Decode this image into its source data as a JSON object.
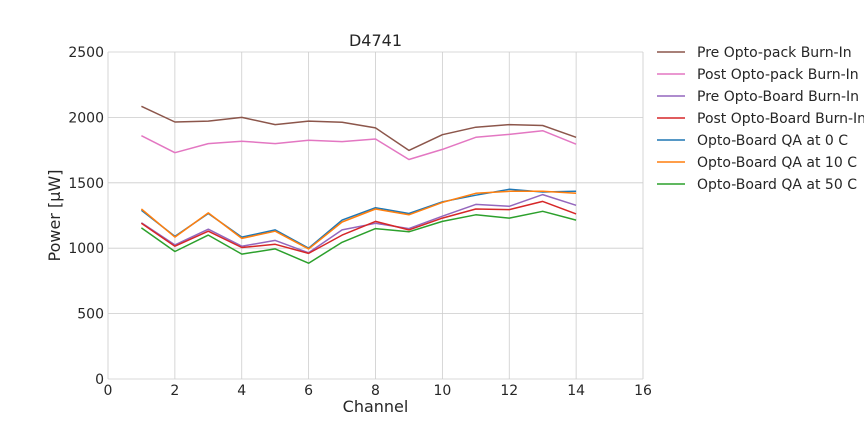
{
  "chart_data": {
    "type": "line",
    "title": "D4741",
    "xlabel": "Channel",
    "ylabel": "Power [μW]",
    "xlim": [
      0,
      16
    ],
    "ylim": [
      0,
      2500
    ],
    "xticks": [
      0,
      2,
      4,
      6,
      8,
      10,
      12,
      14,
      16
    ],
    "yticks": [
      0,
      500,
      1000,
      1500,
      2000,
      2500
    ],
    "grid": true,
    "legend_position": "outside-right-top",
    "x": [
      1,
      2,
      3,
      4,
      5,
      6,
      7,
      8,
      9,
      10,
      11,
      12,
      13,
      14
    ],
    "series": [
      {
        "name": "Pre Opto-pack Burn-In",
        "color": "#8c564b",
        "values": [
          2085,
          1965,
          1972,
          2000,
          1945,
          1972,
          1963,
          1920,
          1748,
          1868,
          1925,
          1945,
          1938,
          1848
        ]
      },
      {
        "name": "Post Opto-pack Burn-In",
        "color": "#e377c2",
        "values": [
          1860,
          1730,
          1800,
          1818,
          1800,
          1825,
          1815,
          1835,
          1678,
          1755,
          1848,
          1870,
          1898,
          1795
        ]
      },
      {
        "name": "Pre Opto-Board Burn-In",
        "color": "#9467bd",
        "values": [
          1195,
          1025,
          1145,
          1015,
          1060,
          965,
          1140,
          1190,
          1150,
          1245,
          1335,
          1320,
          1410,
          1328
        ]
      },
      {
        "name": "Post Opto-Board Burn-In",
        "color": "#d62728",
        "values": [
          1190,
          1015,
          1130,
          1005,
          1030,
          960,
          1100,
          1205,
          1140,
          1230,
          1300,
          1295,
          1358,
          1262
        ]
      },
      {
        "name": "Opto-Board QA at 0 C",
        "color": "#1f77b4",
        "values": [
          1290,
          1090,
          1265,
          1085,
          1140,
          1000,
          1215,
          1310,
          1265,
          1355,
          1405,
          1450,
          1430,
          1435
        ]
      },
      {
        "name": "Opto-Board QA at 10 C",
        "color": "#ff7f0e",
        "values": [
          1300,
          1085,
          1270,
          1075,
          1130,
          995,
          1200,
          1300,
          1255,
          1350,
          1420,
          1435,
          1435,
          1420
        ]
      },
      {
        "name": "Opto-Board QA at 50 C",
        "color": "#2ca02c",
        "values": [
          1155,
          975,
          1100,
          955,
          995,
          885,
          1045,
          1150,
          1125,
          1205,
          1255,
          1230,
          1282,
          1215
        ]
      }
    ]
  }
}
